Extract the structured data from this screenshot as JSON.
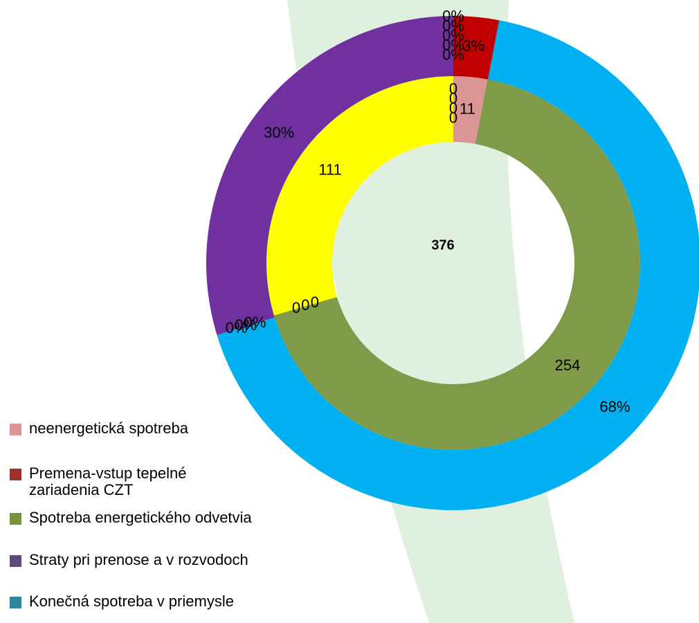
{
  "chart_data": {
    "type": "donut",
    "total": 376,
    "rings": [
      {
        "values": [
          11,
          254,
          0,
          0,
          0,
          111,
          0,
          0,
          0,
          0
        ],
        "colors": [
          "#d99694",
          "#7f9a48",
          "#7f9a48",
          "#7f9a48",
          "#7f9a48",
          "#ffff00",
          "#ffff00",
          "#ffff00",
          "#ffff00",
          "#ffff00"
        ]
      },
      {
        "values": [
          0,
          0,
          0,
          0,
          0,
          3,
          68,
          0,
          0,
          0,
          30
        ],
        "value_labels": [
          "0%",
          "0%",
          "0%",
          "0%",
          "0%",
          "3%",
          "68%",
          "0%",
          "0%",
          "0%",
          "30%"
        ],
        "colors": [
          "#c00000",
          "#c00000",
          "#c00000",
          "#c00000",
          "#c00000",
          "#c00000",
          "#00b0f0",
          "#00b0f0",
          "#00b0f0",
          "#00b0f0",
          "#7030a0"
        ]
      }
    ],
    "legend": [
      {
        "name": "neenergetická spotreba",
        "color": "#d99694"
      },
      {
        "name": "Premena-vstup tepelné zariadenia CZT",
        "color": "#a0302d"
      },
      {
        "name": "Spotreba energetického odvetvia",
        "color": "#77933c"
      },
      {
        "name": "Straty pri prenose a v rozvodoch",
        "color": "#604a7b"
      },
      {
        "name": "Konečná spotreba v priemysle",
        "color": "#31859c"
      }
    ]
  }
}
